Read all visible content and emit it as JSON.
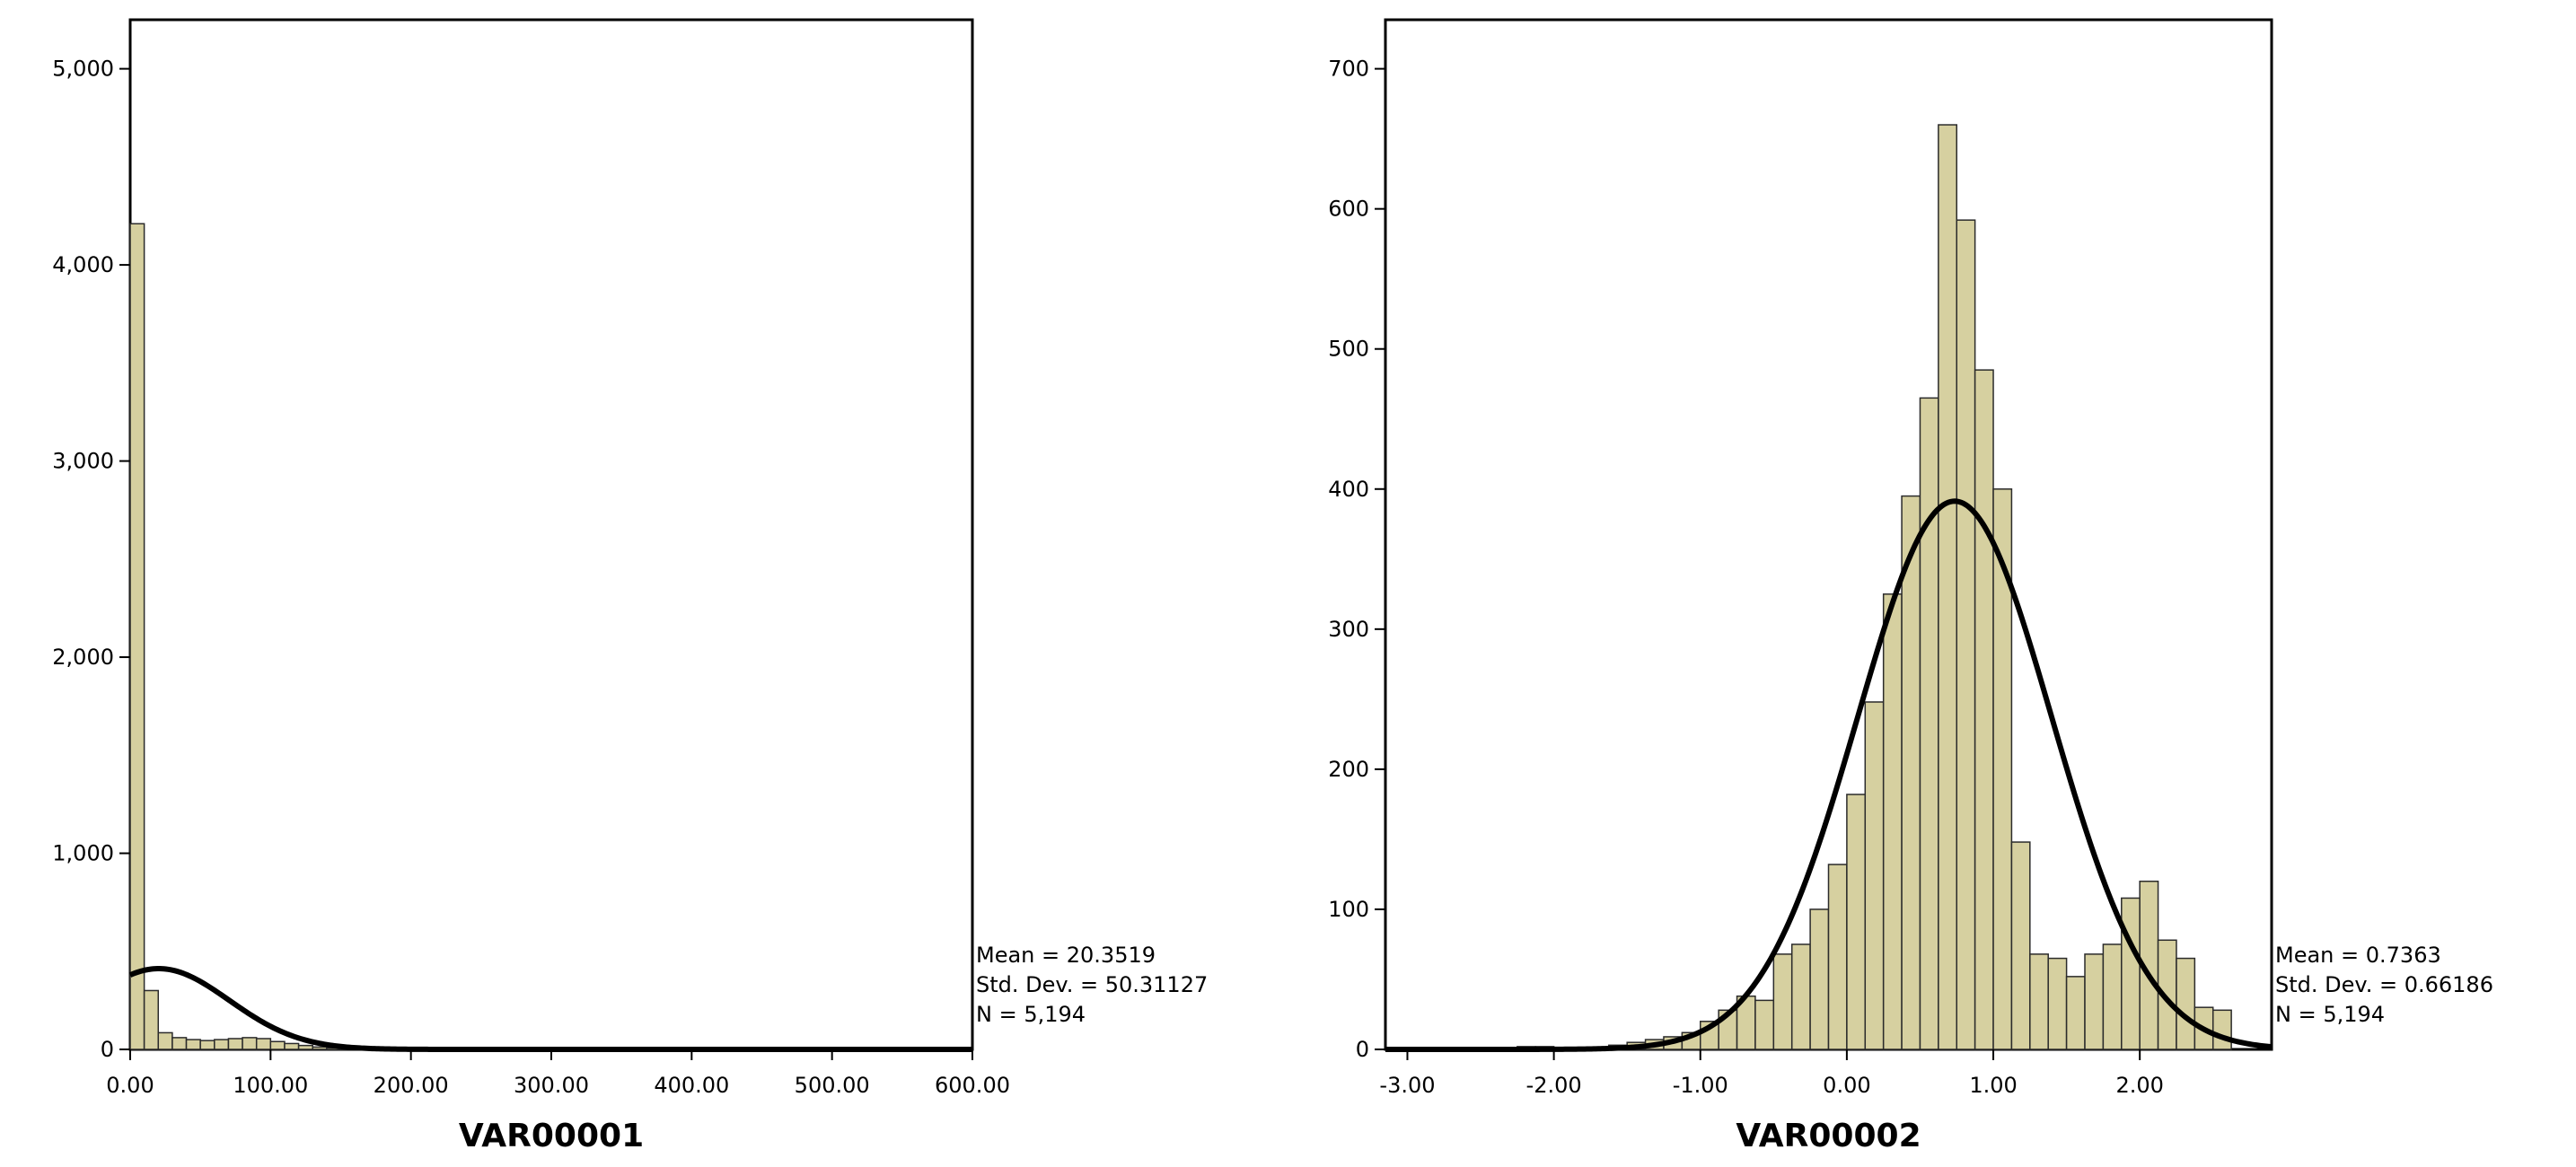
{
  "colors": {
    "bar_fill": "#d6d0a0",
    "bar_stroke": "#2b2b2b",
    "curve": "#000000",
    "frame": "#000000"
  },
  "chart_data": [
    {
      "type": "bar",
      "subtype": "histogram",
      "xlabel": "VAR00001",
      "ylabel": "",
      "xlim": [
        0,
        600
      ],
      "ylim": [
        0,
        5250
      ],
      "x_ticks": [
        "0.00",
        "100.00",
        "200.00",
        "300.00",
        "400.00",
        "500.00",
        "600.00"
      ],
      "x_tick_values": [
        0,
        100,
        200,
        300,
        400,
        500,
        600
      ],
      "y_ticks": [
        "0",
        "1,000",
        "2,000",
        "3,000",
        "4,000",
        "5,000"
      ],
      "y_tick_values": [
        0,
        1000,
        2000,
        3000,
        4000,
        5000
      ],
      "bin_width": 10,
      "bin_starts": [
        0,
        10,
        20,
        30,
        40,
        50,
        60,
        70,
        80,
        90,
        100,
        110,
        120,
        130,
        140,
        150,
        160,
        170,
        180,
        190,
        200,
        210,
        220,
        230,
        240,
        250,
        260,
        270,
        280,
        290,
        300,
        310,
        320,
        330,
        340,
        350
      ],
      "values": [
        4210,
        300,
        85,
        60,
        50,
        45,
        50,
        55,
        60,
        55,
        40,
        30,
        20,
        12,
        8,
        6,
        4,
        3,
        2,
        2,
        2,
        1,
        1,
        1,
        1,
        1,
        1,
        1,
        1,
        1,
        1,
        1,
        1,
        1,
        2,
        1
      ],
      "normal_curve": {
        "mean": 20.3519,
        "std_dev": 50.31127,
        "n": 5194
      },
      "stats": [
        "Mean = 20.3519",
        "Std. Dev. = 50.31127",
        "N = 5,194"
      ],
      "grid": false,
      "legend": "none"
    },
    {
      "type": "bar",
      "subtype": "histogram",
      "xlabel": "VAR00002",
      "ylabel": "",
      "xlim": [
        -3.15,
        2.9
      ],
      "ylim": [
        0,
        735
      ],
      "x_ticks": [
        "-3.00",
        "-2.00",
        "-1.00",
        "0.00",
        "1.00",
        "2.00"
      ],
      "x_tick_values": [
        -3,
        -2,
        -1,
        0,
        1,
        2
      ],
      "y_ticks": [
        "0",
        "100",
        "200",
        "300",
        "400",
        "500",
        "600",
        "700"
      ],
      "y_tick_values": [
        0,
        100,
        200,
        300,
        400,
        500,
        600,
        700
      ],
      "bin_width": 0.125,
      "bin_starts": [
        -3.125,
        -3.0,
        -2.875,
        -2.75,
        -2.625,
        -2.5,
        -2.375,
        -2.25,
        -2.125,
        -2.0,
        -1.875,
        -1.75,
        -1.625,
        -1.5,
        -1.375,
        -1.25,
        -1.125,
        -1.0,
        -0.875,
        -0.75,
        -0.625,
        -0.5,
        -0.375,
        -0.25,
        -0.125,
        0.0,
        0.125,
        0.25,
        0.375,
        0.5,
        0.625,
        0.75,
        0.875,
        1.0,
        1.125,
        1.25,
        1.375,
        1.5,
        1.625,
        1.75,
        1.875,
        2.0,
        2.125,
        2.25,
        2.375,
        2.5
      ],
      "values": [
        1,
        1,
        0,
        0,
        1,
        0,
        0,
        2,
        2,
        1,
        1,
        1,
        3,
        5,
        7,
        9,
        12,
        20,
        28,
        38,
        35,
        68,
        75,
        100,
        132,
        182,
        248,
        325,
        395,
        465,
        660,
        592,
        485,
        400,
        148,
        68,
        65,
        52,
        68,
        75,
        108,
        120,
        78,
        65,
        30,
        28
      ],
      "normal_curve": {
        "mean": 0.7363,
        "std_dev": 0.66186,
        "n": 5194
      },
      "stats": [
        "Mean = 0.7363",
        "Std. Dev. = 0.66186",
        "N = 5,194"
      ],
      "grid": false,
      "legend": "none"
    }
  ]
}
